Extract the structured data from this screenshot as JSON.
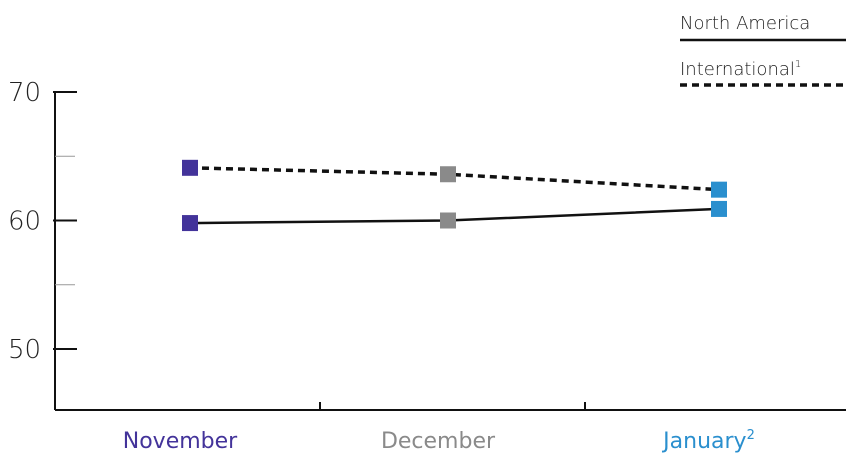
{
  "chart_data": {
    "type": "line",
    "categories": [
      "November",
      "December",
      "January"
    ],
    "category_footnotes": [
      "",
      "",
      "2"
    ],
    "category_colors": [
      "#43339a",
      "#8a8a8a",
      "#2a8fce"
    ],
    "series": [
      {
        "name": "North America",
        "footnote": "",
        "line_style": "solid",
        "values": [
          59.8,
          60.0,
          60.9
        ]
      },
      {
        "name": "International",
        "footnote": "1",
        "line_style": "dashed",
        "values": [
          64.1,
          63.6,
          62.4
        ]
      }
    ],
    "yticks": [
      50,
      60,
      70
    ],
    "ylim": [
      45,
      70
    ],
    "grid": false,
    "legend_position": "top-right",
    "line_color": "#111111"
  }
}
